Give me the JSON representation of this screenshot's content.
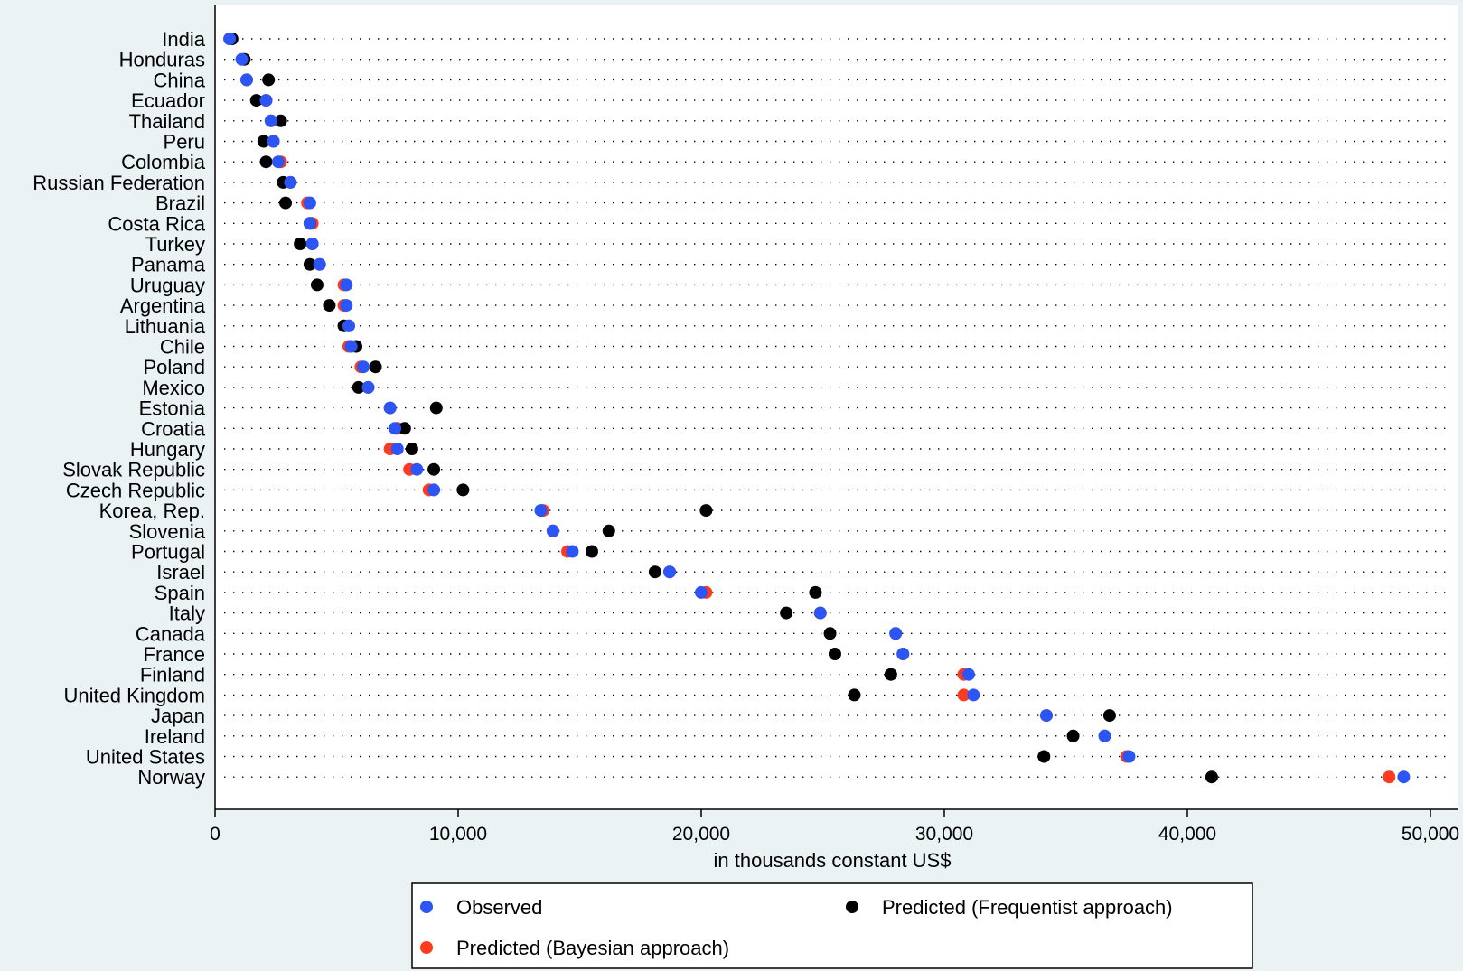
{
  "chart_data": {
    "type": "scatter",
    "title": "",
    "xlabel": "in thousands constant US$",
    "ylabel": "",
    "xlim": [
      0,
      50000
    ],
    "xticks": [
      0,
      10000,
      20000,
      30000,
      40000,
      50000
    ],
    "xtick_labels": [
      "0",
      "10,000",
      "20,000",
      "30,000",
      "40,000",
      "50,000"
    ],
    "grid": "dotted horizontal",
    "legend_placement": "bottom",
    "categories": [
      "India",
      "Honduras",
      "China",
      "Ecuador",
      "Thailand",
      "Peru",
      "Colombia",
      "Russian Federation",
      "Brazil",
      "Costa Rica",
      "Turkey",
      "Panama",
      "Uruguay",
      "Argentina",
      "Lithuania",
      "Chile",
      "Poland",
      "Mexico",
      "Estonia",
      "Croatia",
      "Hungary",
      "Slovak Republic",
      "Czech Republic",
      "Korea, Rep.",
      "Slovenia",
      "Portugal",
      "Israel",
      "Spain",
      "Italy",
      "Canada",
      "France",
      "Finland",
      "United Kingdom",
      "Japan",
      "Ireland",
      "United States",
      "Norway"
    ],
    "series": [
      {
        "name": "Predicted (Bayesian approach)",
        "color": "#ff3b1f",
        "values": [
          600,
          1200,
          1300,
          2100,
          2300,
          2400,
          2700,
          3100,
          3800,
          4000,
          4000,
          4300,
          5300,
          5300,
          5500,
          5500,
          6000,
          6300,
          7200,
          7500,
          7200,
          8000,
          8800,
          13500,
          13900,
          14500,
          18700,
          20200,
          24900,
          28000,
          28300,
          30800,
          30800,
          34200,
          36600,
          37500,
          48300
        ]
      },
      {
        "name": "Predicted (Frequentist approach)",
        "color": "#000000",
        "values": [
          700,
          1200,
          2200,
          1700,
          2700,
          2000,
          2100,
          2800,
          2900,
          3900,
          3500,
          3900,
          4200,
          4700,
          5300,
          5800,
          6600,
          5900,
          9100,
          7800,
          8100,
          9000,
          10200,
          20200,
          16200,
          15500,
          18100,
          24700,
          23500,
          25300,
          25500,
          27800,
          26300,
          36800,
          35300,
          34100,
          41000
        ]
      },
      {
        "name": "Observed",
        "color": "#2b55f5",
        "values": [
          600,
          1100,
          1300,
          2100,
          2300,
          2400,
          2600,
          3100,
          3900,
          3900,
          4000,
          4300,
          5400,
          5400,
          5500,
          5600,
          6100,
          6300,
          7200,
          7400,
          7500,
          8300,
          9000,
          13400,
          13900,
          14700,
          18700,
          20000,
          24900,
          28000,
          28300,
          31000,
          31200,
          34200,
          36600,
          37600,
          48900
        ]
      }
    ],
    "legend": [
      {
        "label": "Observed",
        "color": "#2b55f5"
      },
      {
        "label": "Predicted (Frequentist approach)",
        "color": "#000000"
      },
      {
        "label": "Predicted (Bayesian approach)",
        "color": "#ff3b1f"
      }
    ]
  }
}
